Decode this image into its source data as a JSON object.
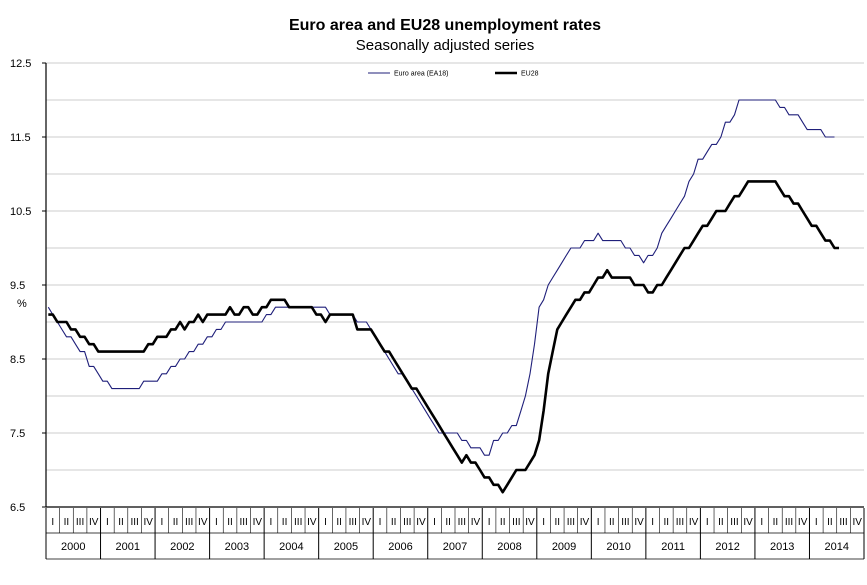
{
  "chart_data": {
    "type": "line",
    "title": "Euro area and EU28 unemployment rates",
    "subtitle": "Seasonally adjusted series",
    "ylabel": "%",
    "ylim": [
      6.5,
      12.5
    ],
    "yticks": [
      "12.5",
      "11.5",
      "10.5",
      "9.5",
      "8.5",
      "7.5",
      "6.5"
    ],
    "grid": true,
    "legend_position": "top",
    "quarter_labels": [
      "I",
      "II",
      "III",
      "IV"
    ],
    "years": [
      "2000",
      "2001",
      "2002",
      "2003",
      "2004",
      "2005",
      "2006",
      "2007",
      "2008",
      "2009",
      "2010",
      "2011",
      "2012",
      "2013",
      "2014"
    ],
    "x_start": "2000-01",
    "x_end": "2014-12",
    "series": [
      {
        "name": "Euro area (EA18)",
        "color": "#1f1f7a",
        "values": [
          9.2,
          9.1,
          9.0,
          8.9,
          8.8,
          8.8,
          8.7,
          8.6,
          8.6,
          8.4,
          8.4,
          8.3,
          8.2,
          8.2,
          8.1,
          8.1,
          8.1,
          8.1,
          8.1,
          8.1,
          8.1,
          8.2,
          8.2,
          8.2,
          8.2,
          8.3,
          8.3,
          8.4,
          8.4,
          8.5,
          8.5,
          8.6,
          8.6,
          8.7,
          8.7,
          8.8,
          8.8,
          8.9,
          8.9,
          9.0,
          9.0,
          9.0,
          9.0,
          9.0,
          9.0,
          9.0,
          9.0,
          9.0,
          9.1,
          9.1,
          9.2,
          9.2,
          9.2,
          9.2,
          9.2,
          9.2,
          9.2,
          9.2,
          9.2,
          9.2,
          9.2,
          9.2,
          9.1,
          9.1,
          9.1,
          9.1,
          9.1,
          9.1,
          9.0,
          9.0,
          9.0,
          8.9,
          8.8,
          8.7,
          8.6,
          8.5,
          8.4,
          8.3,
          8.3,
          8.2,
          8.1,
          8.0,
          7.9,
          7.8,
          7.7,
          7.6,
          7.5,
          7.5,
          7.5,
          7.5,
          7.5,
          7.4,
          7.4,
          7.3,
          7.3,
          7.3,
          7.2,
          7.2,
          7.4,
          7.4,
          7.5,
          7.5,
          7.6,
          7.6,
          7.8,
          8.0,
          8.3,
          8.7,
          9.2,
          9.3,
          9.5,
          9.6,
          9.7,
          9.8,
          9.9,
          10.0,
          10.0,
          10.0,
          10.1,
          10.1,
          10.1,
          10.2,
          10.1,
          10.1,
          10.1,
          10.1,
          10.1,
          10.0,
          10.0,
          9.9,
          9.9,
          9.8,
          9.9,
          9.9,
          10.0,
          10.2,
          10.3,
          10.4,
          10.5,
          10.6,
          10.7,
          10.9,
          11.0,
          11.2,
          11.2,
          11.3,
          11.4,
          11.4,
          11.5,
          11.7,
          11.7,
          11.8,
          12.0,
          12.0,
          12.0,
          12.0,
          12.0,
          12.0,
          12.0,
          12.0,
          12.0,
          11.9,
          11.9,
          11.8,
          11.8,
          11.8,
          11.7,
          11.6,
          11.6,
          11.6,
          11.6,
          11.5,
          11.5,
          11.5
        ]
      },
      {
        "name": "EU28",
        "color": "#000000",
        "values": [
          9.1,
          9.1,
          9.0,
          9.0,
          9.0,
          8.9,
          8.9,
          8.8,
          8.8,
          8.7,
          8.7,
          8.6,
          8.6,
          8.6,
          8.6,
          8.6,
          8.6,
          8.6,
          8.6,
          8.6,
          8.6,
          8.6,
          8.7,
          8.7,
          8.8,
          8.8,
          8.8,
          8.9,
          8.9,
          9.0,
          8.9,
          9.0,
          9.0,
          9.1,
          9.0,
          9.1,
          9.1,
          9.1,
          9.1,
          9.1,
          9.2,
          9.1,
          9.1,
          9.2,
          9.2,
          9.1,
          9.1,
          9.2,
          9.2,
          9.3,
          9.3,
          9.3,
          9.3,
          9.2,
          9.2,
          9.2,
          9.2,
          9.2,
          9.2,
          9.1,
          9.1,
          9.0,
          9.1,
          9.1,
          9.1,
          9.1,
          9.1,
          9.1,
          8.9,
          8.9,
          8.9,
          8.9,
          8.8,
          8.7,
          8.6,
          8.6,
          8.5,
          8.4,
          8.3,
          8.2,
          8.1,
          8.1,
          8.0,
          7.9,
          7.8,
          7.7,
          7.6,
          7.5,
          7.4,
          7.3,
          7.2,
          7.1,
          7.2,
          7.1,
          7.1,
          7.0,
          6.9,
          6.9,
          6.8,
          6.8,
          6.7,
          6.8,
          6.9,
          7.0,
          7.0,
          7.0,
          7.1,
          7.2,
          7.4,
          7.8,
          8.3,
          8.6,
          8.9,
          9.0,
          9.1,
          9.2,
          9.3,
          9.3,
          9.4,
          9.4,
          9.5,
          9.6,
          9.6,
          9.7,
          9.6,
          9.6,
          9.6,
          9.6,
          9.6,
          9.5,
          9.5,
          9.5,
          9.4,
          9.4,
          9.5,
          9.5,
          9.6,
          9.7,
          9.8,
          9.9,
          10.0,
          10.0,
          10.1,
          10.2,
          10.3,
          10.3,
          10.4,
          10.5,
          10.5,
          10.5,
          10.6,
          10.7,
          10.7,
          10.8,
          10.9,
          10.9,
          10.9,
          10.9,
          10.9,
          10.9,
          10.9,
          10.8,
          10.7,
          10.7,
          10.6,
          10.6,
          10.5,
          10.4,
          10.3,
          10.3,
          10.2,
          10.1,
          10.1,
          10.0,
          10.0
        ]
      }
    ]
  }
}
